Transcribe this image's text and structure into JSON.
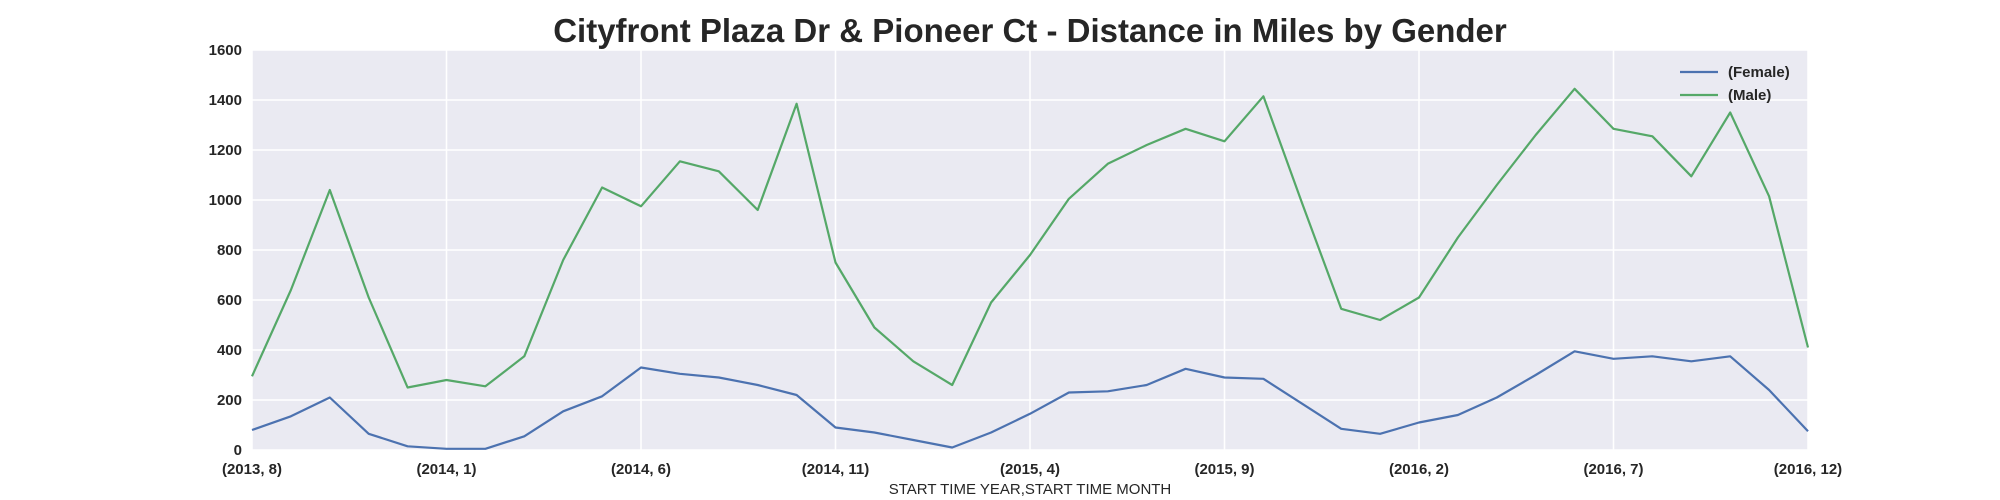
{
  "chart_data": {
    "type": "line",
    "title": "Cityfront Plaza Dr & Pioneer Ct - Distance in Miles by Gender",
    "xlabel": "START TIME YEAR,START TIME MONTH",
    "ylabel": "",
    "ylim": [
      0,
      1600
    ],
    "yticks": [
      "0",
      "200",
      "400",
      "600",
      "800",
      "1000",
      "1200",
      "1400",
      "1600"
    ],
    "grid": true,
    "legend_position": "top-right",
    "x": [
      "(2013, 8)",
      "(2013, 9)",
      "(2013, 10)",
      "(2013, 11)",
      "(2013, 12)",
      "(2014, 1)",
      "(2014, 2)",
      "(2014, 3)",
      "(2014, 4)",
      "(2014, 5)",
      "(2014, 6)",
      "(2014, 7)",
      "(2014, 8)",
      "(2014, 9)",
      "(2014, 10)",
      "(2014, 11)",
      "(2014, 12)",
      "(2015, 1)",
      "(2015, 2)",
      "(2015, 3)",
      "(2015, 4)",
      "(2015, 5)",
      "(2015, 6)",
      "(2015, 7)",
      "(2015, 8)",
      "(2015, 9)",
      "(2015, 10)",
      "(2015, 11)",
      "(2015, 12)",
      "(2016, 1)",
      "(2016, 2)",
      "(2016, 3)",
      "(2016, 4)",
      "(2016, 5)",
      "(2016, 6)",
      "(2016, 7)",
      "(2016, 8)",
      "(2016, 9)",
      "(2016, 10)",
      "(2016, 11)",
      "(2016, 12)"
    ],
    "xtick_labels": [
      "(2013, 8)",
      "(2014, 1)",
      "(2014, 6)",
      "(2014, 11)",
      "(2015, 4)",
      "(2015, 9)",
      "(2016, 2)",
      "(2016, 7)",
      "(2016, 12)"
    ],
    "series": [
      {
        "name": "(Female)",
        "color": "#4c72b0",
        "values": [
          80,
          135,
          210,
          65,
          15,
          5,
          5,
          55,
          155,
          215,
          330,
          305,
          290,
          260,
          220,
          90,
          70,
          40,
          10,
          70,
          145,
          230,
          235,
          260,
          325,
          290,
          285,
          185,
          85,
          65,
          110,
          140,
          210,
          300,
          395,
          365,
          375,
          355,
          375,
          240,
          75
        ]
      },
      {
        "name": "(Male)",
        "color": "#55a868",
        "values": [
          295,
          640,
          1040,
          610,
          250,
          280,
          255,
          375,
          760,
          1050,
          975,
          1155,
          1115,
          960,
          1385,
          750,
          490,
          355,
          260,
          590,
          780,
          1005,
          1145,
          1220,
          1285,
          1235,
          1415,
          985,
          565,
          520,
          610,
          850,
          1060,
          1260,
          1445,
          1285,
          1255,
          1095,
          1350,
          1015,
          410
        ]
      }
    ]
  }
}
